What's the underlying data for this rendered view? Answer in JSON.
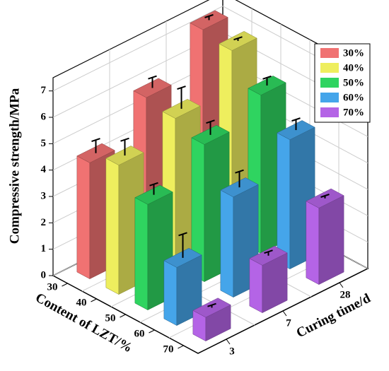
{
  "chart_data": {
    "type": "bar3d",
    "zlabel": "Compressive strength/MPa",
    "xlabel": "Content of  LZT/%",
    "ylabel": "Curing time/d",
    "categories": [
      "3",
      "7",
      "28"
    ],
    "groups": [
      "30",
      "40",
      "50",
      "60",
      "70"
    ],
    "series": [
      {
        "name": "30%",
        "color": "#f07272",
        "values": [
          4.4,
          5.8,
          7.3
        ],
        "errors": [
          0.5,
          0.4,
          0.15
        ]
      },
      {
        "name": "40%",
        "color": "#eeee5e",
        "values": [
          4.9,
          5.6,
          7.1
        ],
        "errors": [
          0.6,
          0.8,
          0.1
        ]
      },
      {
        "name": "50%",
        "color": "#2fd460",
        "values": [
          4.0,
          5.2,
          6.0
        ],
        "errors": [
          0.4,
          0.5,
          0.3
        ]
      },
      {
        "name": "60%",
        "color": "#45a5ea",
        "values": [
          2.2,
          3.8,
          4.9
        ],
        "errors": [
          0.9,
          0.6,
          0.4
        ]
      },
      {
        "name": "70%",
        "color": "#b464e6",
        "values": [
          0.9,
          1.8,
          2.9
        ],
        "errors": [
          0.1,
          0.15,
          0.1
        ]
      }
    ],
    "zlim": [
      0,
      7.5
    ],
    "zticks": [
      0,
      1,
      2,
      3,
      4,
      5,
      6,
      7
    ],
    "grid": true,
    "legend": "upper right"
  }
}
